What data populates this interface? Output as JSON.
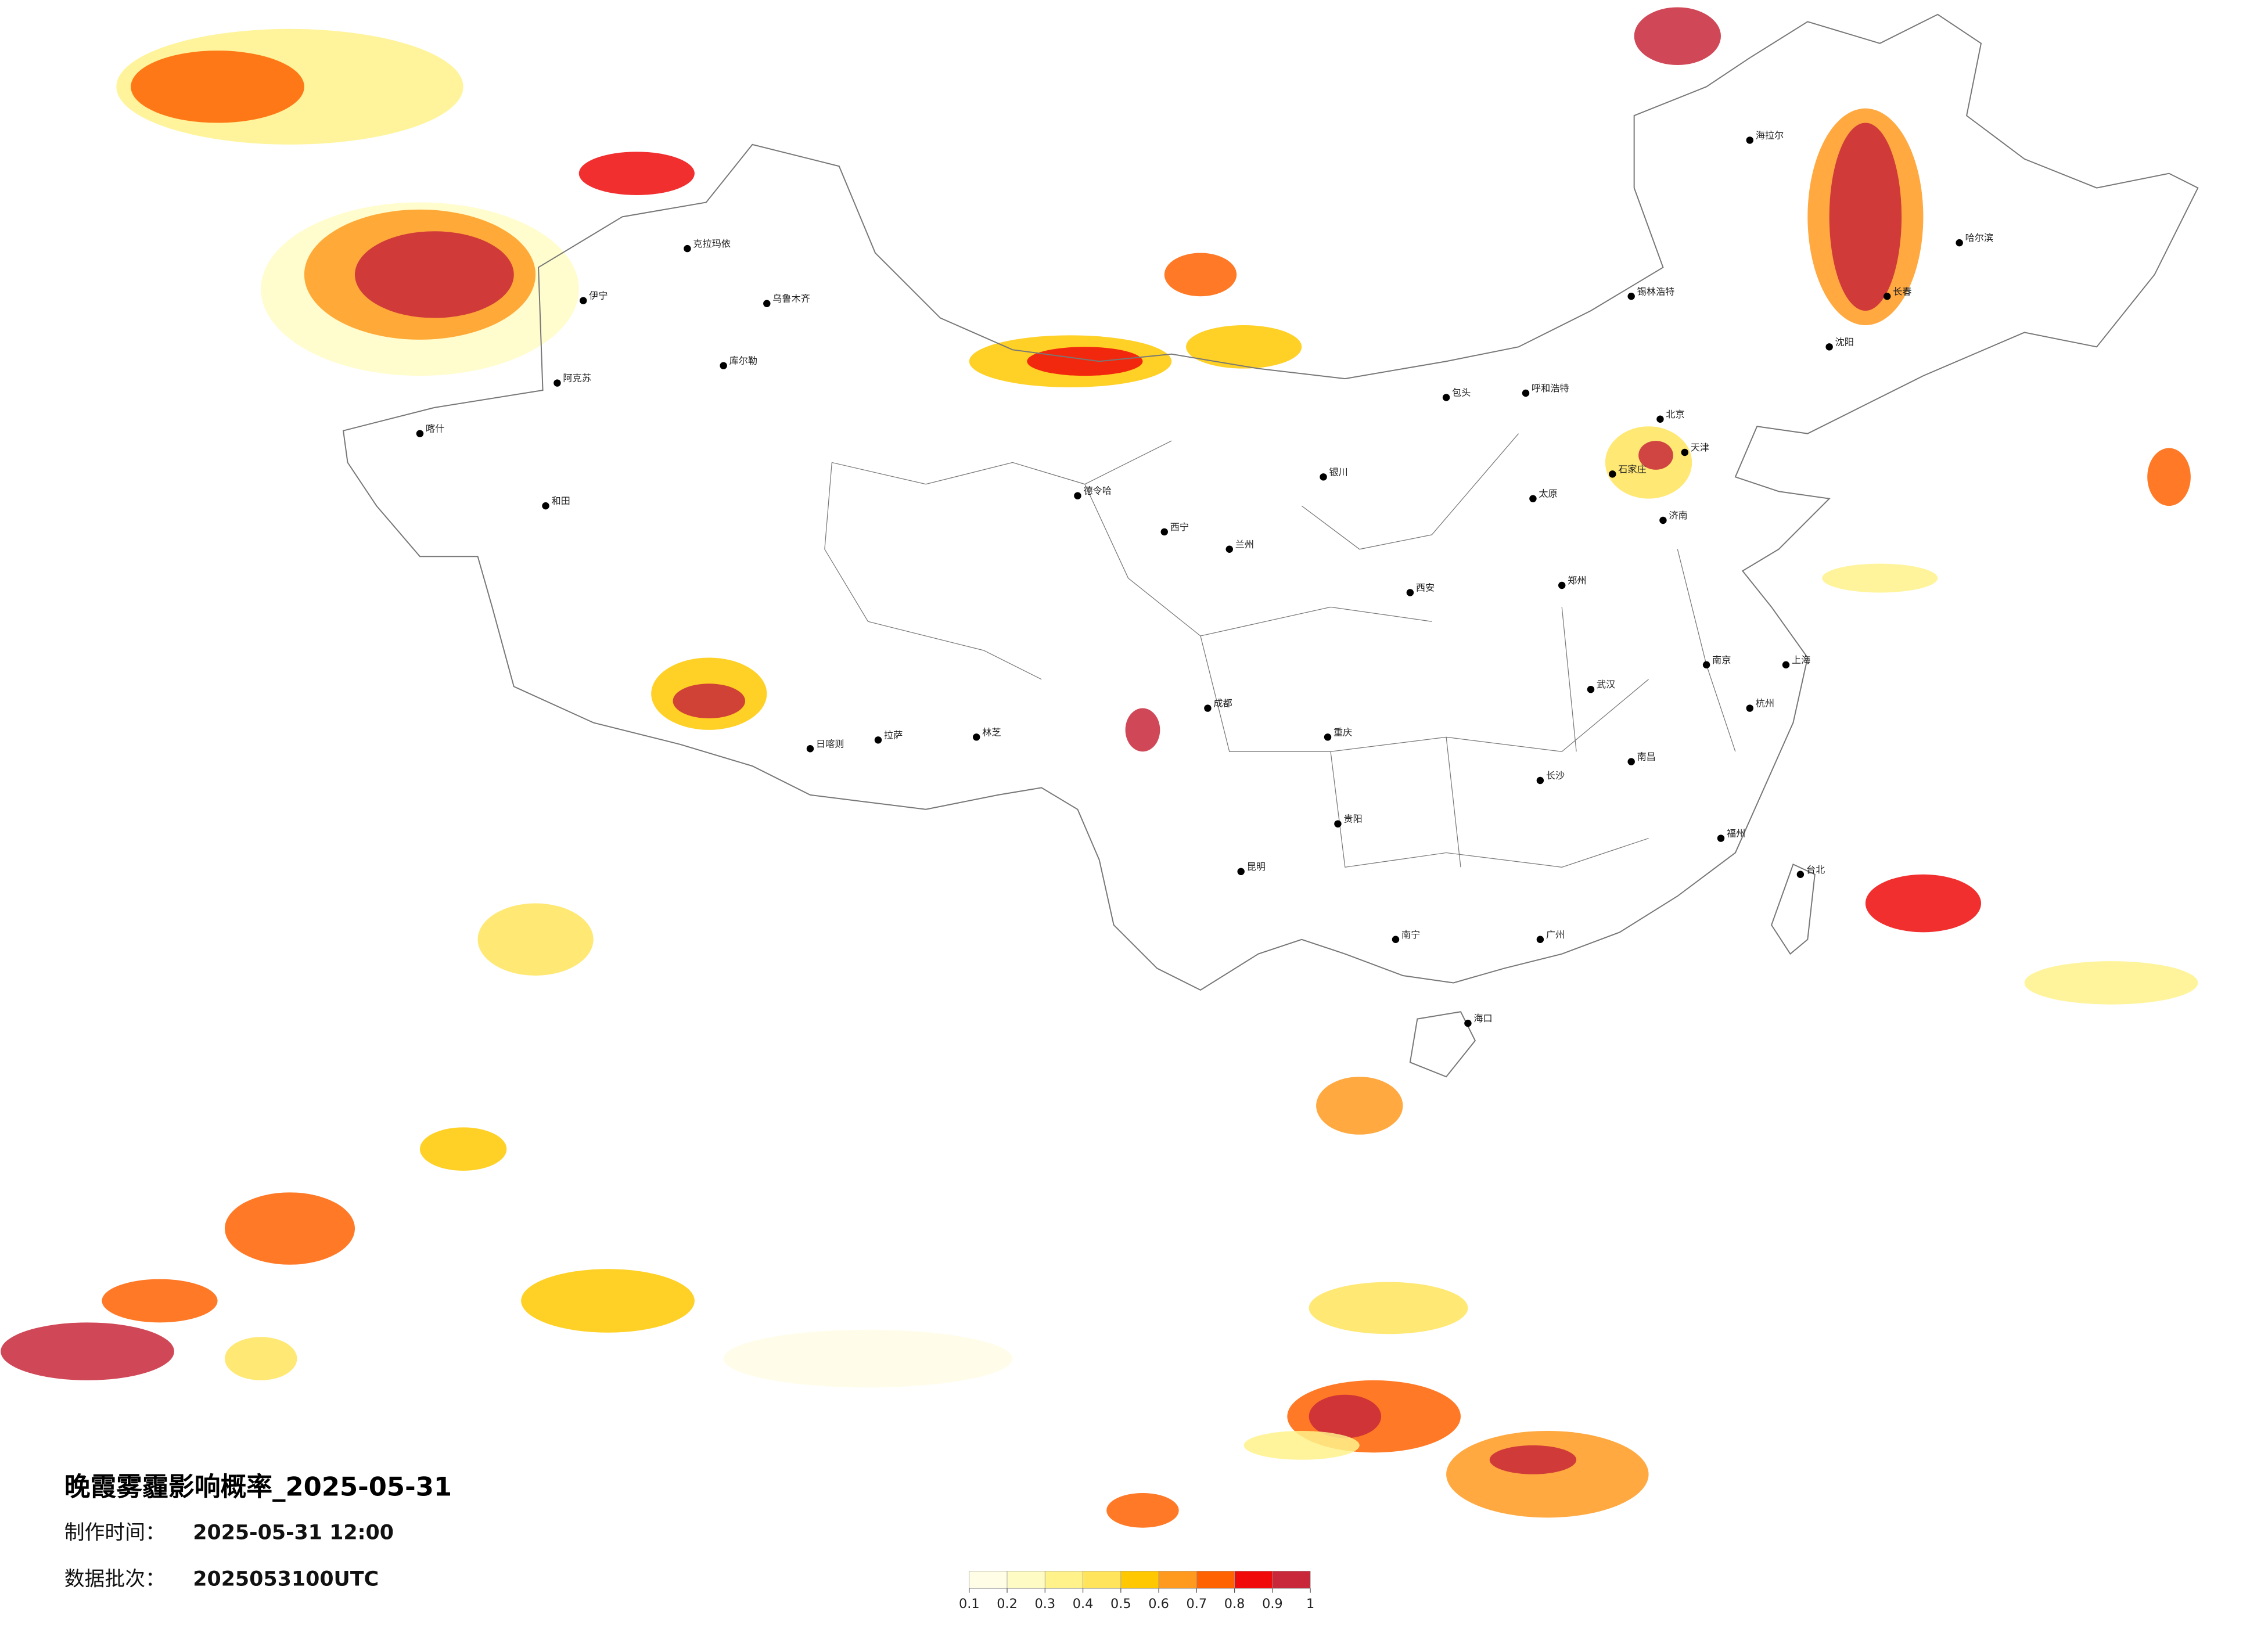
{
  "title": "晚霞雾霾影响概率_2025-05-31",
  "production_time": {
    "label": "制作时间：",
    "value": "2025-05-31 12:00"
  },
  "data_batch": {
    "label": "数据批次：",
    "value": "2025053100UTC"
  },
  "legend": {
    "colors": [
      "#fffde6",
      "#fffbc4",
      "#fff28a",
      "#ffe45c",
      "#ffc800",
      "#ff9a1e",
      "#ff6200",
      "#f00a0a",
      "#c8283a"
    ],
    "ticks": [
      0.1,
      0.2,
      0.3,
      0.4,
      0.5,
      0.6,
      0.7,
      0.8,
      0.9,
      1
    ]
  },
  "cities": [
    "克拉玛依",
    "乌鲁木齐",
    "伊宁",
    "阿克苏",
    "和田",
    "库尔勒",
    "喀什",
    "拉萨",
    "日喀则",
    "林芝",
    "德令哈",
    "西宁",
    "兰州",
    "银川",
    "呼和浩特",
    "包头",
    "北京",
    "天津",
    "石家庄",
    "太原",
    "郑州",
    "西安",
    "成都",
    "重庆",
    "贵阳",
    "昆明",
    "南宁",
    "广州",
    "海口",
    "长沙",
    "武汉",
    "南昌",
    "福州",
    "杭州",
    "上海",
    "南京",
    "济南",
    "沈阳",
    "长春",
    "哈尔滨",
    "海拉尔",
    "锡林浩特",
    "台北"
  ]
}
